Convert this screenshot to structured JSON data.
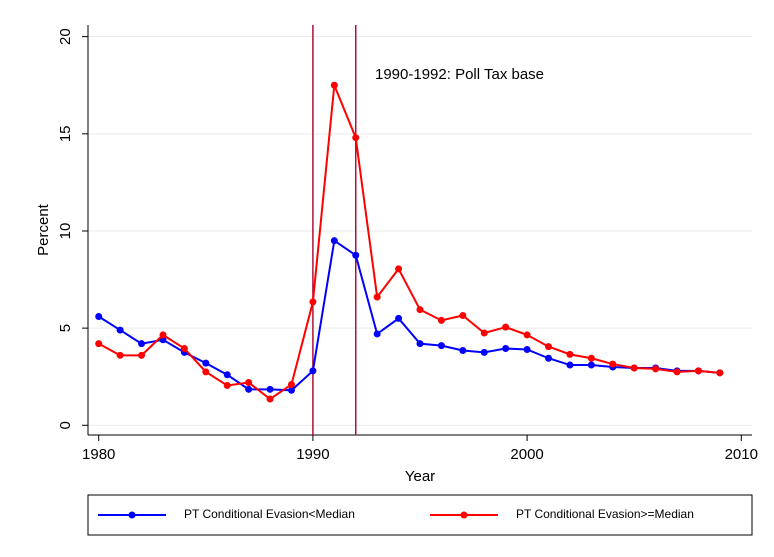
{
  "chart_data": {
    "type": "line",
    "x_label": "Year",
    "y_label": "Percent",
    "annotation": "1990-1992: Poll Tax base",
    "vlines": [
      1990,
      1992
    ],
    "vline_color": "#b0103a",
    "x": [
      1980,
      1981,
      1982,
      1983,
      1984,
      1985,
      1986,
      1987,
      1988,
      1989,
      1990,
      1991,
      1992,
      1993,
      1994,
      1995,
      1996,
      1997,
      1998,
      1999,
      2000,
      2001,
      2002,
      2003,
      2004,
      2005,
      2006,
      2007,
      2008,
      2009
    ],
    "series": [
      {
        "name": "PT Conditional Evasion<Median",
        "color": "#0000ff",
        "values": [
          5.6,
          4.9,
          4.2,
          4.4,
          3.75,
          3.2,
          2.6,
          1.85,
          1.85,
          1.8,
          2.8,
          9.5,
          8.75,
          4.7,
          5.5,
          4.2,
          4.1,
          3.85,
          3.75,
          3.95,
          3.9,
          3.45,
          3.1,
          3.1,
          3.0,
          2.95,
          2.95,
          2.8,
          2.8,
          2.7
        ]
      },
      {
        "name": "PT Conditional Evasion>=Median",
        "color": "#ff0000",
        "values": [
          4.2,
          3.6,
          3.6,
          4.65,
          3.95,
          2.75,
          2.05,
          2.2,
          1.35,
          2.1,
          6.35,
          17.5,
          14.8,
          6.6,
          8.05,
          5.95,
          5.4,
          5.65,
          4.75,
          5.05,
          4.65,
          4.05,
          3.65,
          3.45,
          3.15,
          2.95,
          2.9,
          2.75,
          2.8,
          2.7
        ]
      }
    ],
    "xlim": [
      1979.5,
      2010.5
    ],
    "xticks": [
      1980,
      1990,
      2000,
      2010
    ],
    "ylim": [
      -0.5,
      20.6
    ],
    "yticks": [
      0,
      5,
      10,
      15,
      20
    ],
    "grid": true
  }
}
